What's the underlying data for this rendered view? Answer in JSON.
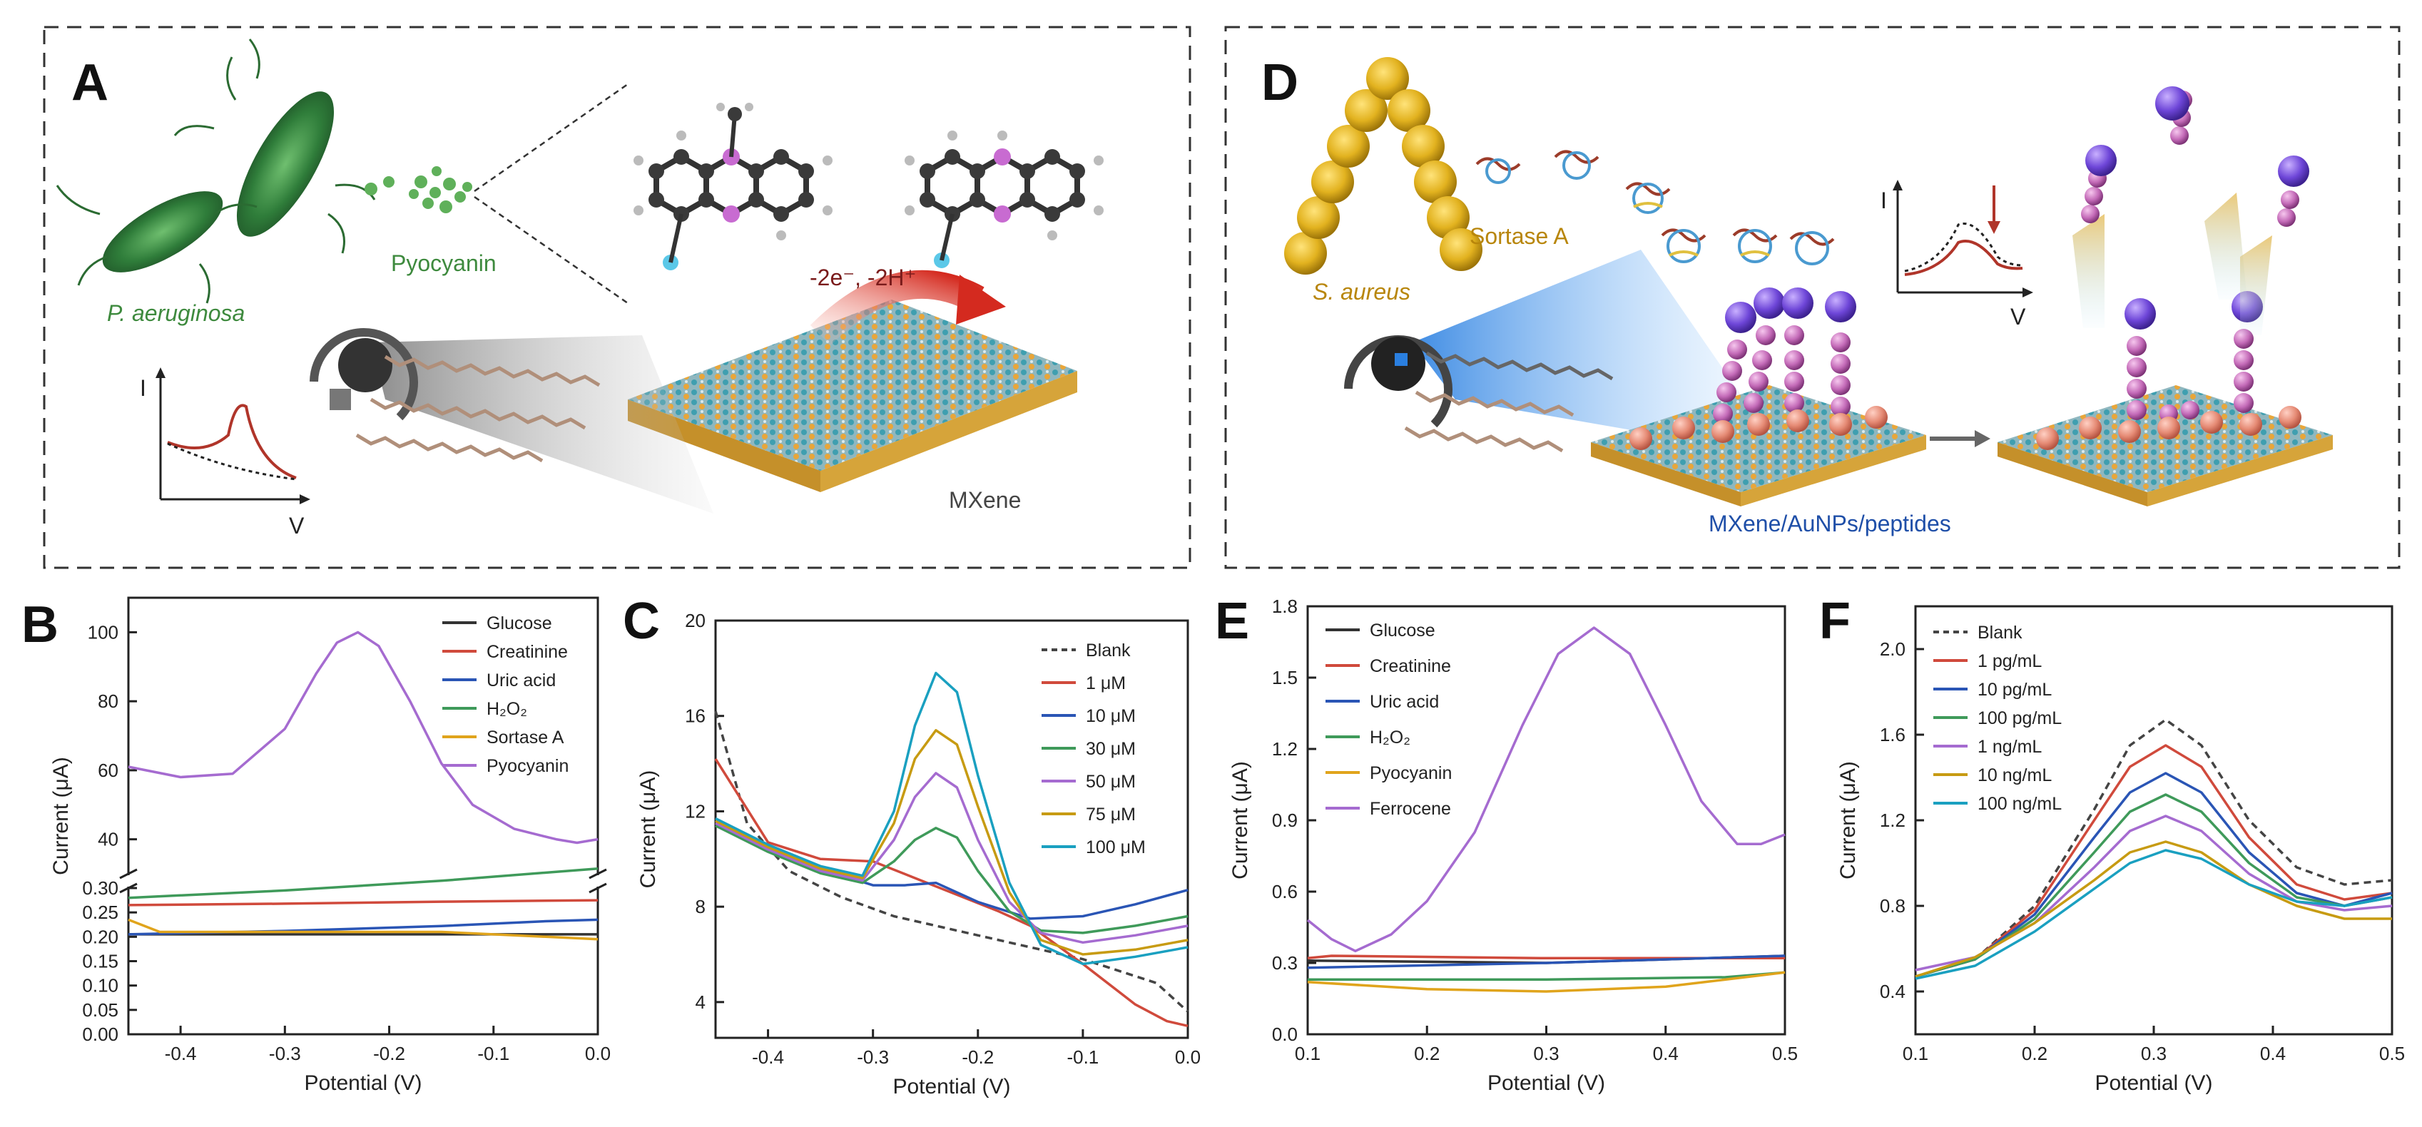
{
  "panels": {
    "A": {
      "letter": "A",
      "bacterium": "P. aeruginosa",
      "molecule": "Pyocyanin",
      "reaction": "-2e⁻, -2H⁺",
      "material": "MXene",
      "inset_y": "I",
      "inset_x": "V"
    },
    "D": {
      "letter": "D",
      "bacterium": "S. aureus",
      "enzyme": "Sortase A",
      "material": "MXene/AuNPs/peptides",
      "inset_y": "I",
      "inset_x": "V"
    }
  },
  "colors": {
    "green_text": "#3e8a3e",
    "gold_text": "#b8860b",
    "blue_text": "#1f4fa8",
    "reaction_red": "#c0392b"
  },
  "chart_data": [
    {
      "id": "B",
      "type": "line",
      "letter": "B",
      "xlabel": "Potential (V)",
      "ylabel": "Current (μA)",
      "xlim": [
        -0.45,
        0.0
      ],
      "broken_axis": true,
      "ylim_lower": [
        0.0,
        0.3
      ],
      "ylim_upper": [
        30,
        110
      ],
      "xticks": [
        -0.4,
        -0.3,
        -0.2,
        -0.1,
        0.0
      ],
      "xtick_labels": [
        "-0.4",
        "-0.3",
        "-0.2",
        "-0.1",
        "0.0"
      ],
      "yticks_lower": [
        0.0,
        0.05,
        0.1,
        0.15,
        0.2,
        0.25,
        0.3
      ],
      "ytick_labels_lower": [
        "0.00",
        "0.05",
        "0.10",
        "0.15",
        "0.20",
        "0.25",
        "0.30"
      ],
      "yticks_upper": [
        40,
        60,
        80,
        100
      ],
      "ytick_labels_upper": [
        "40",
        "60",
        "80",
        "100"
      ],
      "legend": [
        "Glucose",
        "Creatinine",
        "Uric acid",
        "H₂O₂",
        "Sortase A",
        "Pyocyanin"
      ],
      "series": [
        {
          "name": "Glucose",
          "color": "#333333",
          "segment": "lower",
          "x": [
            -0.45,
            0.0
          ],
          "y": [
            0.205,
            0.205
          ]
        },
        {
          "name": "Creatinine",
          "color": "#d04a3c",
          "segment": "lower",
          "x": [
            -0.45,
            -0.3,
            -0.15,
            0.0
          ],
          "y": [
            0.265,
            0.268,
            0.272,
            0.275
          ]
        },
        {
          "name": "Uric acid",
          "color": "#2a55b5",
          "segment": "lower",
          "x": [
            -0.45,
            -0.3,
            -0.15,
            -0.05,
            0.0
          ],
          "y": [
            0.205,
            0.212,
            0.222,
            0.232,
            0.235
          ]
        },
        {
          "name": "H₂O₂",
          "color": "#3f9a5a",
          "segment": "lower",
          "x": [
            -0.45,
            -0.3,
            -0.15,
            0.0
          ],
          "y": [
            0.28,
            0.295,
            0.315,
            0.34
          ]
        },
        {
          "name": "Sortase A",
          "color": "#e0a41c",
          "segment": "lower",
          "x": [
            -0.45,
            -0.42,
            -0.3,
            -0.15,
            -0.05,
            0.0
          ],
          "y": [
            0.235,
            0.21,
            0.21,
            0.21,
            0.2,
            0.195
          ]
        },
        {
          "name": "Pyocyanin",
          "color": "#a56bd0",
          "segment": "upper",
          "x": [
            -0.45,
            -0.4,
            -0.35,
            -0.3,
            -0.27,
            -0.25,
            -0.23,
            -0.21,
            -0.18,
            -0.15,
            -0.12,
            -0.08,
            -0.04,
            -0.02,
            0.0
          ],
          "y": [
            61,
            58,
            59,
            72,
            88,
            97,
            100,
            96,
            80,
            62,
            50,
            43,
            40,
            39,
            40
          ]
        }
      ]
    },
    {
      "id": "C",
      "type": "line",
      "letter": "C",
      "xlabel": "Potential (V)",
      "ylabel": "Current (μA)",
      "xlim": [
        -0.45,
        0.0
      ],
      "ylim": [
        2.5,
        20
      ],
      "xticks": [
        -0.4,
        -0.3,
        -0.2,
        -0.1,
        0.0
      ],
      "xtick_labels": [
        "-0.4",
        "-0.3",
        "-0.2",
        "-0.1",
        "0.0"
      ],
      "yticks": [
        4,
        8,
        12,
        16,
        20
      ],
      "ytick_labels": [
        "4",
        "8",
        "12",
        "16",
        "20"
      ],
      "legend": [
        "Blank",
        "1 μM",
        "10 μM",
        "30 μM",
        "50 μM",
        "75 μM",
        "100 μM"
      ],
      "series": [
        {
          "name": "Blank",
          "color": "#444444",
          "dashed": true,
          "x": [
            -0.45,
            -0.42,
            -0.38,
            -0.33,
            -0.28,
            -0.2,
            -0.1,
            -0.03,
            0.0
          ],
          "y": [
            16.2,
            11.5,
            9.5,
            8.4,
            7.6,
            6.8,
            5.8,
            4.8,
            3.6
          ]
        },
        {
          "name": "1 μM",
          "color": "#d04a3c",
          "x": [
            -0.45,
            -0.4,
            -0.35,
            -0.3,
            -0.26,
            -0.22,
            -0.18,
            -0.15,
            -0.1,
            -0.05,
            -0.02,
            0.0
          ],
          "y": [
            14.2,
            10.7,
            10.0,
            9.9,
            9.2,
            8.5,
            7.8,
            7.2,
            5.6,
            3.9,
            3.2,
            3.0
          ]
        },
        {
          "name": "10 μM",
          "color": "#2a55b5",
          "x": [
            -0.45,
            -0.4,
            -0.35,
            -0.3,
            -0.27,
            -0.24,
            -0.2,
            -0.15,
            -0.1,
            -0.05,
            0.0
          ],
          "y": [
            11.6,
            10.5,
            9.6,
            8.9,
            8.9,
            9.0,
            8.2,
            7.5,
            7.6,
            8.1,
            8.7
          ]
        },
        {
          "name": "30 μM",
          "color": "#3f9a5a",
          "x": [
            -0.45,
            -0.4,
            -0.35,
            -0.31,
            -0.28,
            -0.26,
            -0.24,
            -0.22,
            -0.2,
            -0.17,
            -0.14,
            -0.1,
            -0.05,
            0.0
          ],
          "y": [
            11.4,
            10.3,
            9.4,
            9.0,
            9.9,
            10.8,
            11.3,
            10.9,
            9.5,
            7.8,
            7.0,
            6.9,
            7.2,
            7.6
          ]
        },
        {
          "name": "50 μM",
          "color": "#a56bd0",
          "x": [
            -0.45,
            -0.4,
            -0.35,
            -0.31,
            -0.28,
            -0.26,
            -0.24,
            -0.22,
            -0.2,
            -0.17,
            -0.14,
            -0.1,
            -0.05,
            0.0
          ],
          "y": [
            11.5,
            10.4,
            9.5,
            9.1,
            10.8,
            12.6,
            13.6,
            13.0,
            10.8,
            8.2,
            6.9,
            6.5,
            6.8,
            7.2
          ]
        },
        {
          "name": "75 μM",
          "color": "#c79b12",
          "x": [
            -0.45,
            -0.4,
            -0.35,
            -0.31,
            -0.28,
            -0.26,
            -0.24,
            -0.22,
            -0.2,
            -0.17,
            -0.14,
            -0.1,
            -0.05,
            0.0
          ],
          "y": [
            11.6,
            10.5,
            9.6,
            9.2,
            11.5,
            14.2,
            15.4,
            14.8,
            12.2,
            8.6,
            6.6,
            6.0,
            6.2,
            6.6
          ]
        },
        {
          "name": "100 μM",
          "color": "#1aa0c0",
          "x": [
            -0.45,
            -0.4,
            -0.35,
            -0.31,
            -0.28,
            -0.26,
            -0.24,
            -0.22,
            -0.2,
            -0.17,
            -0.14,
            -0.1,
            -0.05,
            0.0
          ],
          "y": [
            11.7,
            10.6,
            9.7,
            9.3,
            12.0,
            15.6,
            17.8,
            17.0,
            13.5,
            9.0,
            6.4,
            5.6,
            5.9,
            6.3
          ]
        }
      ]
    },
    {
      "id": "E",
      "type": "line",
      "letter": "E",
      "xlabel": "Potential (V)",
      "ylabel": "Current (μA)",
      "xlim": [
        0.1,
        0.5
      ],
      "ylim": [
        0.0,
        1.8
      ],
      "xticks": [
        0.1,
        0.2,
        0.3,
        0.4,
        0.5
      ],
      "xtick_labels": [
        "0.1",
        "0.2",
        "0.3",
        "0.4",
        "0.5"
      ],
      "yticks": [
        0.0,
        0.3,
        0.6,
        0.9,
        1.2,
        1.5,
        1.8
      ],
      "ytick_labels": [
        "0.0",
        "0.3",
        "0.6",
        "0.9",
        "1.2",
        "1.5",
        "1.8"
      ],
      "legend": [
        "Glucose",
        "Creatinine",
        "Uric acid",
        "H₂O₂",
        "Pyocyanin",
        "Ferrocene"
      ],
      "series": [
        {
          "name": "Glucose",
          "color": "#333333",
          "x": [
            0.1,
            0.3,
            0.5
          ],
          "y": [
            0.31,
            0.3,
            0.33
          ]
        },
        {
          "name": "Creatinine",
          "color": "#d04a3c",
          "x": [
            0.1,
            0.12,
            0.3,
            0.5
          ],
          "y": [
            0.32,
            0.33,
            0.32,
            0.32
          ]
        },
        {
          "name": "Uric acid",
          "color": "#2a55b5",
          "x": [
            0.1,
            0.3,
            0.5
          ],
          "y": [
            0.28,
            0.3,
            0.33
          ]
        },
        {
          "name": "H₂O₂",
          "color": "#3f9a5a",
          "x": [
            0.1,
            0.3,
            0.45,
            0.5
          ],
          "y": [
            0.23,
            0.23,
            0.24,
            0.26
          ]
        },
        {
          "name": "Pyocyanin",
          "color": "#e0a41c",
          "x": [
            0.1,
            0.2,
            0.3,
            0.4,
            0.5
          ],
          "y": [
            0.22,
            0.19,
            0.18,
            0.2,
            0.26
          ]
        },
        {
          "name": "Ferrocene",
          "color": "#a56bd0",
          "x": [
            0.1,
            0.12,
            0.14,
            0.17,
            0.2,
            0.24,
            0.28,
            0.31,
            0.34,
            0.37,
            0.4,
            0.43,
            0.46,
            0.48,
            0.5
          ],
          "y": [
            0.48,
            0.4,
            0.35,
            0.42,
            0.56,
            0.85,
            1.3,
            1.6,
            1.71,
            1.6,
            1.3,
            0.98,
            0.8,
            0.8,
            0.84
          ]
        }
      ]
    },
    {
      "id": "F",
      "type": "line",
      "letter": "F",
      "xlabel": "Potential (V)",
      "ylabel": "Current (μA)",
      "xlim": [
        0.1,
        0.5
      ],
      "ylim": [
        0.2,
        2.2
      ],
      "xticks": [
        0.1,
        0.2,
        0.3,
        0.4,
        0.5
      ],
      "xtick_labels": [
        "0.1",
        "0.2",
        "0.3",
        "0.4",
        "0.5"
      ],
      "yticks": [
        0.4,
        0.8,
        1.2,
        1.6,
        2.0
      ],
      "ytick_labels": [
        "0.4",
        "0.8",
        "1.2",
        "1.6",
        "2.0"
      ],
      "legend": [
        "Blank",
        "1 pg/mL",
        "10 pg/mL",
        "100 pg/mL",
        "1 ng/mL",
        "10 ng/mL",
        "100 ng/mL"
      ],
      "series": [
        {
          "name": "Blank",
          "color": "#444444",
          "dashed": true,
          "x": [
            0.1,
            0.15,
            0.2,
            0.25,
            0.28,
            0.31,
            0.34,
            0.38,
            0.42,
            0.46,
            0.5
          ],
          "y": [
            0.47,
            0.55,
            0.8,
            1.25,
            1.55,
            1.67,
            1.55,
            1.2,
            0.98,
            0.9,
            0.92
          ]
        },
        {
          "name": "1 pg/mL",
          "color": "#d04a3c",
          "x": [
            0.1,
            0.15,
            0.2,
            0.25,
            0.28,
            0.31,
            0.34,
            0.38,
            0.42,
            0.46,
            0.5
          ],
          "y": [
            0.47,
            0.55,
            0.78,
            1.2,
            1.45,
            1.55,
            1.45,
            1.12,
            0.9,
            0.83,
            0.86
          ]
        },
        {
          "name": "10 pg/mL",
          "color": "#2a55b5",
          "x": [
            0.1,
            0.15,
            0.2,
            0.25,
            0.28,
            0.31,
            0.34,
            0.38,
            0.42,
            0.46,
            0.5
          ],
          "y": [
            0.47,
            0.55,
            0.76,
            1.12,
            1.33,
            1.42,
            1.33,
            1.05,
            0.86,
            0.8,
            0.86
          ]
        },
        {
          "name": "100 pg/mL",
          "color": "#3f9a5a",
          "x": [
            0.1,
            0.15,
            0.2,
            0.25,
            0.28,
            0.31,
            0.34,
            0.38,
            0.42,
            0.46,
            0.5
          ],
          "y": [
            0.47,
            0.55,
            0.74,
            1.05,
            1.24,
            1.32,
            1.24,
            1.0,
            0.84,
            0.8,
            0.84
          ]
        },
        {
          "name": "1 ng/mL",
          "color": "#a56bd0",
          "x": [
            0.1,
            0.15,
            0.2,
            0.25,
            0.28,
            0.31,
            0.34,
            0.38,
            0.42,
            0.46,
            0.5
          ],
          "y": [
            0.5,
            0.56,
            0.72,
            0.98,
            1.15,
            1.22,
            1.15,
            0.95,
            0.82,
            0.78,
            0.8
          ]
        },
        {
          "name": "10 ng/mL",
          "color": "#c79b12",
          "x": [
            0.1,
            0.15,
            0.2,
            0.25,
            0.28,
            0.31,
            0.34,
            0.38,
            0.42,
            0.46,
            0.5
          ],
          "y": [
            0.47,
            0.56,
            0.72,
            0.92,
            1.05,
            1.1,
            1.05,
            0.9,
            0.8,
            0.74,
            0.74
          ]
        },
        {
          "name": "100 ng/mL",
          "color": "#1aa0c0",
          "x": [
            0.1,
            0.15,
            0.2,
            0.25,
            0.28,
            0.31,
            0.34,
            0.38,
            0.42,
            0.46,
            0.5
          ],
          "y": [
            0.46,
            0.52,
            0.68,
            0.88,
            1.0,
            1.06,
            1.02,
            0.9,
            0.82,
            0.8,
            0.84
          ]
        }
      ]
    }
  ]
}
